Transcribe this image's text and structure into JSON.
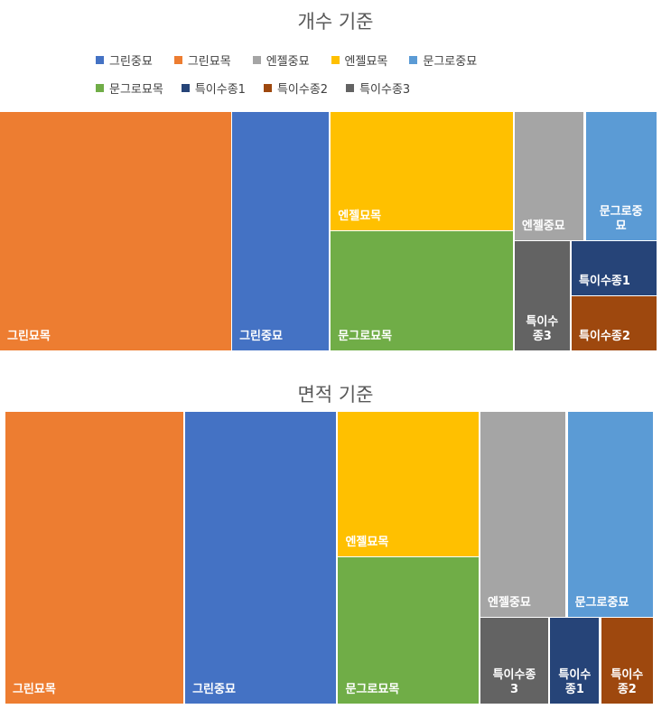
{
  "colors": {
    "그린중묘": "#4472C4",
    "그린묘목": "#ED7D31",
    "엔젤중묘": "#A5A5A5",
    "엔젤묘목": "#FFC000",
    "문그로중묘": "#5B9BD5",
    "문그로묘목": "#70AD47",
    "특이수종1": "#264478",
    "특이수종2": "#9E480E",
    "특이수종3": "#636363"
  },
  "legend": {
    "row1": [
      "그린중묘",
      "그린묘목",
      "엔젤중묘",
      "엔젤묘목",
      "문그로중묘"
    ],
    "row2": [
      "문그로묘목",
      "특이수종1",
      "특이수종2",
      "특이수종3"
    ]
  },
  "chart_data": [
    {
      "type": "treemap",
      "title": "개수 기준",
      "categories": [
        "그린묘목",
        "그린중묘",
        "엔젤묘목",
        "문그로묘목",
        "엔젤중묘",
        "문그로중묘",
        "특이수종1",
        "특이수종2",
        "특이수종3"
      ],
      "values": [
        66,
        28,
        25,
        25,
        11,
        11,
        6,
        6,
        6
      ],
      "tile_labels": {
        "그린묘목": "그린묘목",
        "그린중묘": "그린중묘",
        "엔젤묘목": "엔젤묘목",
        "문그로묘목": "문그로묘목",
        "엔젤중묘": "엔젤중묘",
        "문그로중묘": "문그로중\n묘",
        "특이수종1": "특이수종1",
        "특이수종2": "특이수종2",
        "특이수종3": "특이수\n종3"
      }
    },
    {
      "type": "treemap",
      "title": "면적 기준",
      "categories": [
        "그린묘목",
        "그린중묘",
        "엔젤묘목",
        "문그로묘목",
        "엔젤중묘",
        "문그로중묘",
        "특이수종3",
        "특이수종1",
        "특이수종2"
      ],
      "values": [
        63,
        53,
        26,
        26,
        16,
        17,
        6,
        5,
        5
      ],
      "tile_labels": {
        "그린묘목": "그린묘목",
        "그린중묘": "그린중묘",
        "엔젤묘목": "엔젤묘목",
        "문그로묘목": "문그로묘목",
        "엔젤중묘": "엔젤중묘",
        "문그로중묘": "문그로중묘",
        "특이수종3": "특이수종\n3",
        "특이수종1": "특이수\n종1",
        "특이수종2": "특이수\n종2"
      }
    }
  ]
}
